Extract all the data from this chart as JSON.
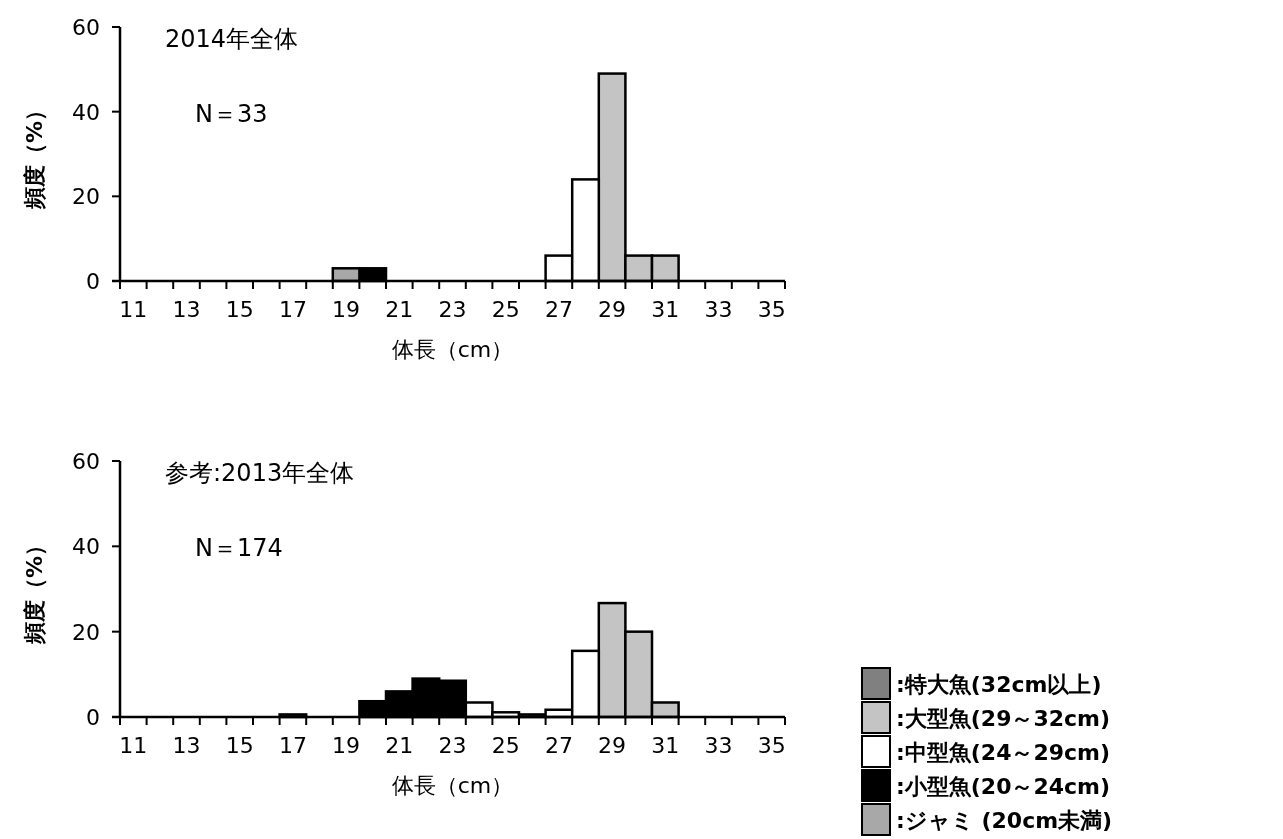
{
  "chart_data": [
    {
      "type": "bar",
      "stacked": true,
      "title": "2014年全体",
      "annotations": [
        "N＝33"
      ],
      "xlabel": "体長（cm）",
      "ylabel": "頻度（%）",
      "categories": [
        "11",
        null,
        "13",
        null,
        "15",
        null,
        "17",
        null,
        "19",
        null,
        "21",
        null,
        "23",
        null,
        "25",
        null,
        "27",
        null,
        "29",
        null,
        "31",
        null,
        "33",
        null,
        "35"
      ],
      "ylim": [
        0,
        60
      ],
      "yticks": [
        0,
        20,
        40,
        60
      ],
      "grid": false,
      "legend": false,
      "series": [
        {
          "color": "#c4c4c4",
          "values": [
            null,
            null,
            null,
            null,
            null,
            null,
            null,
            null,
            null,
            null,
            null,
            null,
            null,
            null,
            null,
            null,
            null,
            null,
            49,
            6,
            6,
            null,
            null,
            null,
            null
          ]
        },
        {
          "color": "#ffffff",
          "values": [
            null,
            null,
            null,
            null,
            null,
            null,
            null,
            null,
            null,
            null,
            null,
            null,
            null,
            null,
            null,
            null,
            6,
            24,
            null,
            null,
            null,
            null,
            null,
            null,
            null
          ]
        },
        {
          "color": "#000000",
          "values": [
            null,
            null,
            null,
            null,
            null,
            null,
            null,
            null,
            null,
            3,
            null,
            null,
            null,
            null,
            null,
            null,
            null,
            null,
            null,
            null,
            null,
            null,
            null,
            null,
            null
          ]
        },
        {
          "color": "#a8a8a8",
          "values": [
            null,
            null,
            null,
            null,
            null,
            null,
            null,
            null,
            3,
            null,
            null,
            null,
            null,
            null,
            null,
            null,
            null,
            null,
            null,
            null,
            null,
            null,
            null,
            null,
            null
          ]
        }
      ]
    },
    {
      "type": "bar",
      "stacked": true,
      "title": "参考:2013年全体",
      "annotations": [
        "N＝174"
      ],
      "xlabel": "体長（cm）",
      "ylabel": "頻度（%）",
      "categories": [
        "11",
        null,
        "13",
        null,
        "15",
        null,
        "17",
        null,
        "19",
        null,
        "21",
        null,
        "23",
        null,
        "25",
        null,
        "27",
        null,
        "29",
        null,
        "31",
        null,
        "33",
        null,
        "35"
      ],
      "ylim": [
        0,
        60
      ],
      "yticks": [
        0,
        20,
        40,
        60
      ],
      "grid": false,
      "legend": "bottom right",
      "series": [
        {
          "name": ":特大魚(32cm以上)",
          "color": "#808080",
          "values": [
            null,
            null,
            null,
            null,
            null,
            null,
            null,
            null,
            null,
            null,
            null,
            null,
            null,
            null,
            null,
            null,
            null,
            null,
            null,
            null,
            null,
            null,
            null,
            null,
            null
          ]
        },
        {
          "name": ":大型魚(29～32cm)",
          "color": "#c4c4c4",
          "values": [
            null,
            null,
            null,
            null,
            null,
            null,
            null,
            null,
            null,
            null,
            null,
            null,
            null,
            null,
            null,
            null,
            null,
            null,
            26.7,
            20,
            3.4,
            null,
            null,
            null,
            null
          ]
        },
        {
          "name": ":中型魚(24～29cm)",
          "color": "#ffffff",
          "values": [
            null,
            null,
            null,
            null,
            null,
            null,
            null,
            null,
            null,
            null,
            null,
            null,
            null,
            3.4,
            1.1,
            0.6,
            1.7,
            15.5,
            null,
            null,
            null,
            null,
            null,
            null,
            null
          ]
        },
        {
          "name": ":小型魚(20～24cm)",
          "color": "#000000",
          "values": [
            null,
            null,
            null,
            null,
            null,
            null,
            null,
            null,
            null,
            3.7,
            6,
            9,
            8.5,
            null,
            null,
            null,
            null,
            null,
            null,
            null,
            null,
            null,
            null,
            null,
            null
          ]
        },
        {
          "name": ":ジャミ (20cm未満)",
          "color": "#a8a8a8",
          "values": [
            null,
            null,
            null,
            null,
            null,
            null,
            0.6,
            null,
            null,
            null,
            null,
            null,
            null,
            null,
            null,
            null,
            null,
            null,
            null,
            null,
            null,
            null,
            null,
            null,
            null
          ]
        }
      ]
    }
  ]
}
